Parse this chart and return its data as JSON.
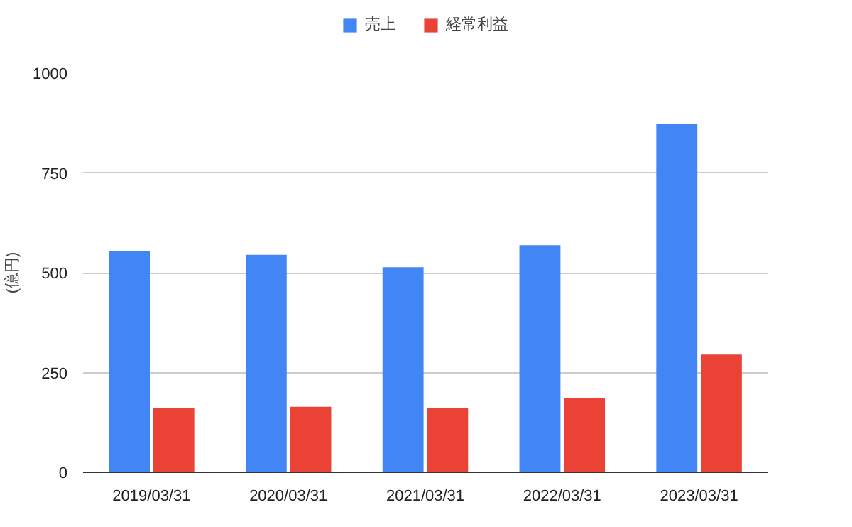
{
  "chart_data": {
    "type": "bar",
    "ylabel": "(億円)",
    "categories": [
      "2019/03/31",
      "2020/03/31",
      "2021/03/31",
      "2022/03/31",
      "2023/03/31"
    ],
    "series": [
      {
        "name": "売上",
        "color": "#4285f4",
        "values": [
          555,
          545,
          514,
          569,
          872
        ]
      },
      {
        "name": "経常利益",
        "color": "#ea4335",
        "values": [
          160,
          164,
          160,
          186,
          295
        ]
      }
    ],
    "ylim": [
      0,
      1000
    ],
    "yticks": [
      0,
      250,
      500,
      750,
      1000
    ],
    "grid": "y",
    "legend": "top"
  }
}
